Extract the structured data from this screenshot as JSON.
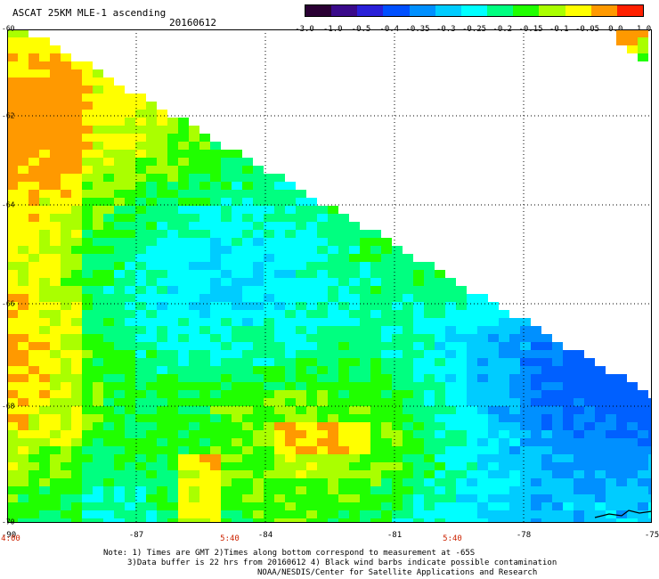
{
  "header": {
    "title": "ASCAT 25KM MLE-1 ascending",
    "date": "20160612"
  },
  "colorbar": {
    "labels": [
      "-3.0",
      "-1.0",
      "-0.5",
      "-0.4",
      "-0.35",
      "-0.3",
      "-0.25",
      "-0.2",
      "-0.15",
      "-0.1",
      "-0.05",
      "0.0",
      "1.0"
    ],
    "colors": [
      "#2a0033",
      "#3a0a8a",
      "#2a20d8",
      "#0050ff",
      "#0090ff",
      "#00ccff",
      "#00ffff",
      "#00ff80",
      "#20ff00",
      "#aaff00",
      "#ffff00",
      "#ff9900",
      "#ff2000"
    ]
  },
  "map": {
    "lat_labels": [
      "-60",
      "-62",
      "-64",
      "-66",
      "-68",
      "-70"
    ],
    "lon_labels": [
      "-90",
      "-87",
      "-84",
      "-81",
      "-78",
      "-75"
    ],
    "time_labels": [
      "4:00",
      "5:40",
      "5:40"
    ],
    "palette": {
      "orange": "#ff9900",
      "yellow": "#ffff00",
      "lime": "#aaff00",
      "green": "#20ff00",
      "spring": "#00ff80",
      "cyan": "#00ffff",
      "sky": "#00ccff",
      "blue": "#0090ff",
      "azure": "#0060ff"
    }
  },
  "notes": {
    "line1": "Note: 1) Times are GMT 2)Times along bottom correspond to measurement at -65S",
    "line2": "3)Data buffer is 22 hrs from 20160612 4) Black wind barbs indicate possible contamination",
    "line3": "NOAA/NESDIS/Center for Satellite Applications and Research"
  }
}
